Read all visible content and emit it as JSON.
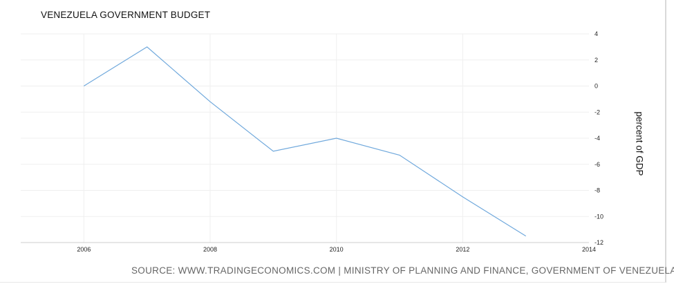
{
  "chart_data": {
    "type": "line",
    "title": "VENEZUELA GOVERNMENT BUDGET",
    "ylabel": "percent of GDP",
    "xlabel": "",
    "source": "SOURCE: WWW.TRADINGECONOMICS.COM | MINISTRY OF PLANNING AND FINANCE, GOVERNMENT OF VENEZUELA",
    "xlim": [
      2005,
      2014
    ],
    "ylim": [
      -12,
      4
    ],
    "x_ticks": [
      "2006",
      "2008",
      "2010",
      "2012",
      "2014"
    ],
    "y_ticks": [
      "4",
      "2",
      "0",
      "-2",
      "-4",
      "-6",
      "-8",
      "-10",
      "-12"
    ],
    "series": [
      {
        "name": "Government Budget",
        "x": [
          2006,
          2007,
          2008,
          2009,
          2010,
          2011,
          2012,
          2013
        ],
        "values": [
          0.0,
          3.0,
          -1.2,
          -5.0,
          -4.0,
          -5.3,
          -8.5,
          -11.5
        ],
        "color": "#6fa8dc"
      }
    ],
    "grid": true,
    "y_axis_position": "right"
  }
}
